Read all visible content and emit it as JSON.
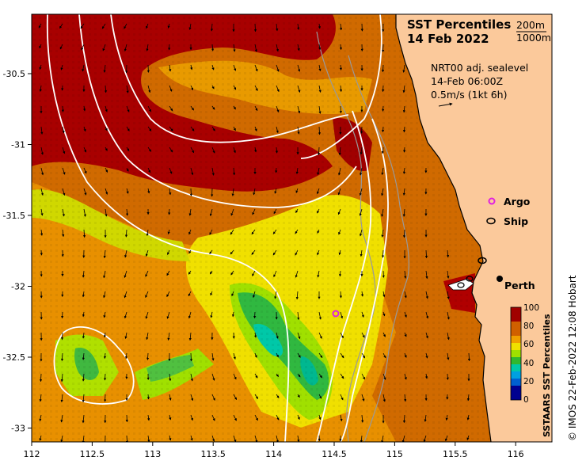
{
  "map": {
    "title_line1": "SST Percentiles",
    "title_line2": "14 Feb 2022",
    "contour_legend": [
      "200m",
      "1000m"
    ],
    "product": "NRT00 adj. sealevel",
    "time": "14-Feb 06:00Z",
    "vector_scale": "0.5m/s (1kt 6h)",
    "x_ticks": [
      "112",
      "112.5",
      "113",
      "113.5",
      "114",
      "114.5",
      "115",
      "115.5",
      "116"
    ],
    "y_ticks": [
      "-30.5",
      "-31",
      "-31.5",
      "-32",
      "-32.5",
      "-33"
    ],
    "legend": {
      "argo": "Argo",
      "ship": "Ship"
    },
    "city": "Perth",
    "credit": "© IMOS 22-Feb-2022 12:08 Hobart"
  },
  "colorbar": {
    "title": "SSTAARS SST Percentiles",
    "labels": [
      "100",
      "80",
      "60",
      "40",
      "20",
      "0"
    ]
  },
  "colors": {
    "land": "#fbc99b",
    "p100": "#a00000",
    "p80": "#d06000",
    "p70": "#f0a000",
    "p60": "#f0e000",
    "p50": "#a0e000",
    "p40": "#30b830",
    "p30": "#00c8a8",
    "p10": "#0040c0",
    "argo": "#e020e0"
  }
}
